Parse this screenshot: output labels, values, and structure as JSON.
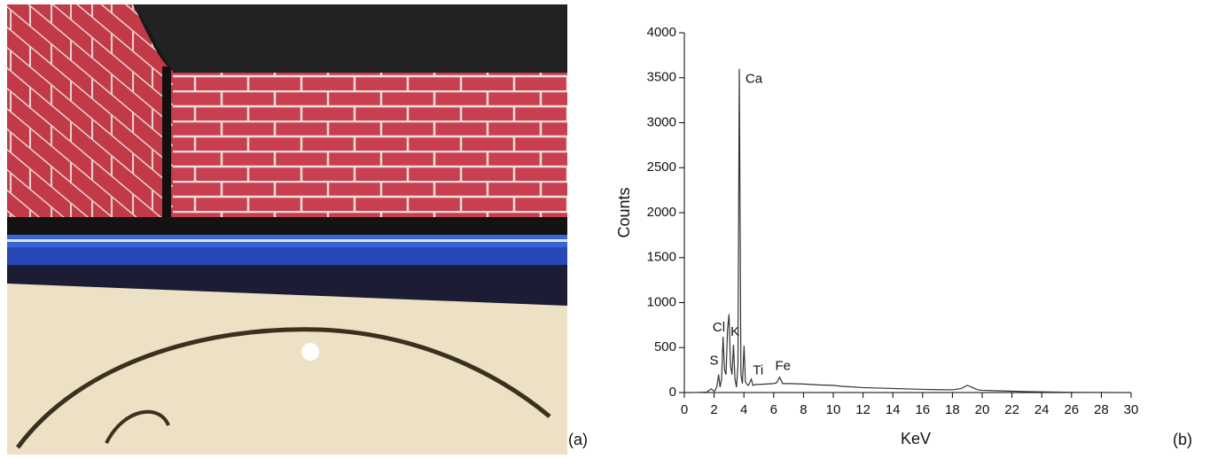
{
  "panel_labels": [
    "(a)",
    "(b)"
  ],
  "chart_data": {
    "type": "line",
    "x_label": "KeV",
    "y_label": "Counts",
    "xlim": [
      0,
      30
    ],
    "ylim": [
      0,
      4000
    ],
    "xticks": [
      0,
      2,
      4,
      6,
      8,
      10,
      12,
      14,
      16,
      18,
      20,
      22,
      24,
      26,
      28,
      30
    ],
    "yticks": [
      0,
      500,
      1000,
      1500,
      2000,
      2500,
      3000,
      3500,
      4000
    ],
    "series": [
      {
        "color": "#333333",
        "x": [
          0,
          0.5,
          1,
          1.5,
          1.8,
          2.0,
          2.1,
          2.2,
          2.3,
          2.4,
          2.5,
          2.6,
          2.7,
          2.8,
          2.9,
          3.0,
          3.1,
          3.2,
          3.3,
          3.4,
          3.5,
          3.6,
          3.69,
          3.8,
          3.9,
          4.01,
          4.1,
          4.2,
          4.3,
          4.5,
          4.6,
          4.8,
          5,
          5.5,
          6,
          6.2,
          6.4,
          6.6,
          7,
          8,
          9,
          10,
          10.5,
          11,
          12,
          13,
          14,
          15,
          16,
          17,
          18,
          18.6,
          19,
          19.3,
          19.7,
          20,
          21,
          22,
          23,
          24,
          25,
          26,
          27,
          28,
          29,
          30
        ],
        "values": [
          0,
          0,
          2,
          5,
          40,
          15,
          30,
          80,
          200,
          60,
          150,
          620,
          250,
          200,
          700,
          870,
          300,
          200,
          530,
          150,
          60,
          300,
          3600,
          200,
          100,
          520,
          120,
          90,
          80,
          150,
          80,
          90,
          90,
          95,
          100,
          110,
          170,
          100,
          100,
          95,
          85,
          80,
          70,
          65,
          55,
          50,
          45,
          40,
          35,
          32,
          30,
          45,
          80,
          60,
          30,
          25,
          20,
          15,
          10,
          8,
          5,
          3,
          2,
          1,
          0,
          0
        ]
      }
    ],
    "annotations": [
      {
        "text": "Ca",
        "x": 4.1,
        "y": 3480
      },
      {
        "text": "Cl",
        "x": 1.9,
        "y": 720
      },
      {
        "text": "K",
        "x": 3.1,
        "y": 670
      },
      {
        "text": "S",
        "x": 1.7,
        "y": 350
      },
      {
        "text": "Ti",
        "x": 4.6,
        "y": 240
      },
      {
        "text": "Fe",
        "x": 6.1,
        "y": 290
      }
    ]
  }
}
